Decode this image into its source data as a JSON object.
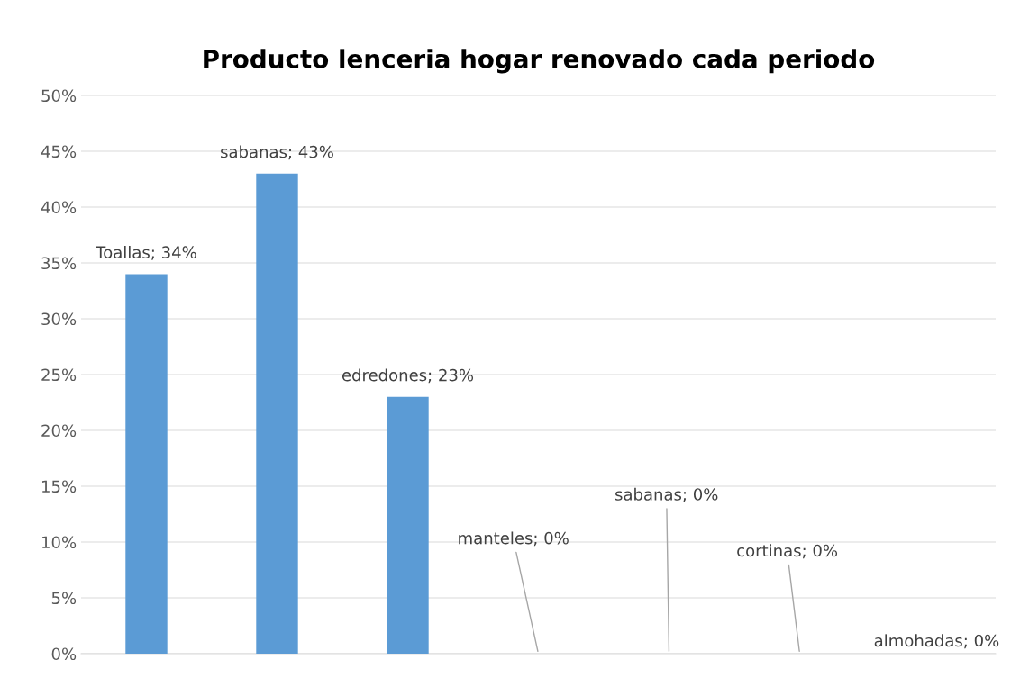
{
  "chart_data": {
    "type": "bar",
    "title": "Producto lenceria hogar renovado cada periodo",
    "categories": [
      null,
      null,
      null,
      null,
      null,
      null,
      null
    ],
    "values": [
      34,
      43,
      23,
      0,
      0,
      0,
      0
    ],
    "color": "#5b9bd5",
    "value_labels": [
      "Toallas; 34%",
      "sabanas; 43%",
      "edredones; 23%",
      "manteles; 0%",
      "sabanas; 0%",
      "cortinas; 0%",
      "almohadas; 0%"
    ],
    "ylim": [
      0,
      50
    ],
    "yticks": [
      {
        "value": 0,
        "label": "0%"
      },
      {
        "value": 5,
        "label": "5%"
      },
      {
        "value": 10,
        "label": "10%"
      },
      {
        "value": 15,
        "label": "15%"
      },
      {
        "value": 20,
        "label": "20%"
      },
      {
        "value": 25,
        "label": "25%"
      },
      {
        "value": 30,
        "label": "30%"
      },
      {
        "value": 35,
        "label": "35%"
      },
      {
        "value": 40,
        "label": "40%"
      },
      {
        "value": 45,
        "label": "45%"
      },
      {
        "value": 50,
        "label": "50%"
      }
    ],
    "grid": "y",
    "legend": false
  }
}
